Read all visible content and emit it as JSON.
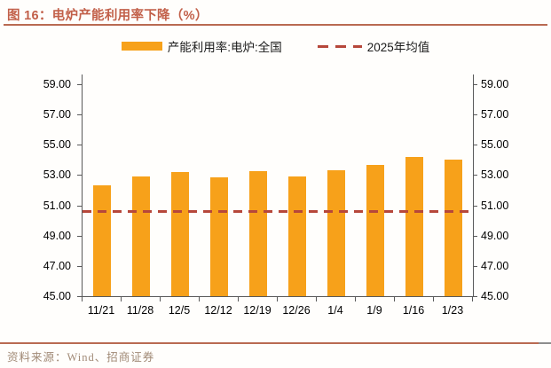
{
  "title": "图 16：电炉产能利用率下降（%）",
  "legend": {
    "bar_series_label": "产能利用率:电炉:全国",
    "line_series_label": "2025年均值"
  },
  "footer": {
    "source_label": "资料来源：Wind、招商证券"
  },
  "colors": {
    "title": "#c2604a",
    "rule": "#b96a52",
    "bar": "#f7a11a",
    "mean_line": "#b6473a",
    "axis": "#595959",
    "source_text": "#a18a76"
  },
  "chart_data": {
    "type": "bar",
    "title": "电炉产能利用率下降（%）",
    "categories": [
      "11/21",
      "11/28",
      "12/5",
      "12/12",
      "12/19",
      "12/26",
      "1/4",
      "1/9",
      "1/16",
      "1/23"
    ],
    "series": [
      {
        "name": "产能利用率:电炉:全国",
        "type": "bar",
        "color": "#f7a11a",
        "values": [
          52.35,
          52.9,
          53.2,
          52.85,
          53.25,
          52.9,
          53.3,
          53.7,
          54.2,
          54.05
        ]
      },
      {
        "name": "2025年均值",
        "type": "dashed-line",
        "color": "#b6473a",
        "value": 50.6
      }
    ],
    "ylabel": "",
    "xlabel": "",
    "ylim": [
      45,
      59.65
    ],
    "y_ticks": [
      45,
      47,
      49,
      51,
      53,
      55,
      57,
      59
    ],
    "y_tick_format_decimals": 2,
    "dual_y_axis": true,
    "grid": false,
    "legend_position": "top"
  }
}
